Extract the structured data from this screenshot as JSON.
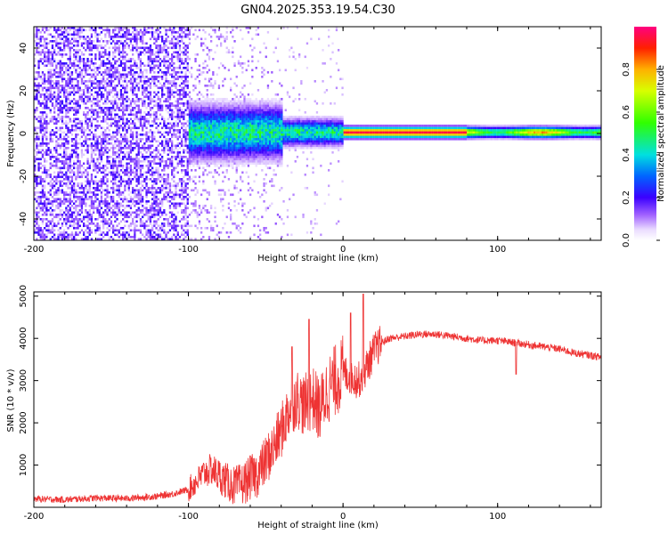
{
  "title": "GN04.2025.353.19.54.C30",
  "colorbar": {
    "label": "Normalized spectral amplitude",
    "range": [
      0,
      1
    ],
    "ticks": [
      "0.0",
      "0.2",
      "0.4",
      "0.6",
      "0.8"
    ],
    "tick_values": [
      0.0,
      0.2,
      0.4,
      0.6,
      0.8
    ],
    "stops": [
      {
        "v": 0.0,
        "color": "#ffffff"
      },
      {
        "v": 0.05,
        "color": "#eadcff"
      },
      {
        "v": 0.12,
        "color": "#a060ff"
      },
      {
        "v": 0.2,
        "color": "#3b00ff"
      },
      {
        "v": 0.3,
        "color": "#0064ff"
      },
      {
        "v": 0.4,
        "color": "#00e0e0"
      },
      {
        "v": 0.55,
        "color": "#30ff00"
      },
      {
        "v": 0.7,
        "color": "#d8ff00"
      },
      {
        "v": 0.8,
        "color": "#ffb000"
      },
      {
        "v": 0.9,
        "color": "#ff2000"
      },
      {
        "v": 1.0,
        "color": "#ff0080"
      }
    ]
  },
  "chart_data": [
    {
      "type": "heatmap",
      "title": "GN04.2025.353.19.54.C30",
      "xlabel": "Height of straight line (km)",
      "ylabel": "Frequency (Hz)",
      "xlim": [
        -200,
        167
      ],
      "ylim": [
        -50,
        50
      ],
      "x_ticks": [
        -200,
        -100,
        0,
        100
      ],
      "x_tick_labels": [
        "-200",
        "-100",
        "0",
        "100"
      ],
      "y_ticks": [
        -40,
        -20,
        0,
        20,
        40
      ],
      "y_tick_labels": [
        "-40",
        "-20",
        "0",
        "20",
        "40"
      ],
      "regions": [
        {
          "x_range": [
            -200,
            -100
          ],
          "description": "broadband noise",
          "amplitude": 0.15
        },
        {
          "x_range": [
            -100,
            0
          ],
          "description": "signal emerging near 0 Hz",
          "peak_amplitude": 0.5
        },
        {
          "x_range": [
            0,
            167
          ],
          "description": "strong narrow line at 0 Hz",
          "peak_amplitude": 0.95
        }
      ],
      "colorbar_label": "Normalized spectral amplitude"
    },
    {
      "type": "line",
      "xlabel": "Height of straight line (km)",
      "ylabel": "SNR (10 * v/v)",
      "xlim": [
        -200,
        167
      ],
      "ylim": [
        0,
        5100
      ],
      "x_ticks": [
        -200,
        -100,
        0,
        100
      ],
      "x_tick_labels": [
        "-200",
        "-100",
        "0",
        "100"
      ],
      "y_ticks": [
        1000,
        2000,
        3000,
        4000,
        5000
      ],
      "y_tick_labels": [
        "1000",
        "2000",
        "3000",
        "4000",
        "5000"
      ],
      "series": [
        {
          "name": "SNR",
          "color": "#ee3333",
          "x": [
            -200,
            -180,
            -160,
            -140,
            -120,
            -110,
            -100,
            -95,
            -90,
            -85,
            -80,
            -75,
            -70,
            -65,
            -60,
            -55,
            -50,
            -45,
            -40,
            -35,
            -30,
            -25,
            -20,
            -15,
            -10,
            -5,
            0,
            5,
            10,
            15,
            20,
            25,
            30,
            40,
            50,
            60,
            70,
            80,
            90,
            100,
            110,
            120,
            130,
            140,
            150,
            160,
            167
          ],
          "values": [
            200,
            180,
            220,
            210,
            260,
            320,
            420,
            600,
            800,
            900,
            750,
            600,
            500,
            550,
            700,
            800,
            1100,
            1400,
            1800,
            2300,
            2600,
            2400,
            2600,
            2300,
            2800,
            3000,
            3200,
            3100,
            3000,
            3300,
            3700,
            3900,
            4000,
            4050,
            4100,
            4100,
            4050,
            4000,
            3950,
            3950,
            3900,
            3850,
            3800,
            3750,
            3650,
            3600,
            3550
          ],
          "spikes": [
            {
              "x": 13,
              "value": 5050
            },
            {
              "x": -22,
              "value": 4450
            },
            {
              "x": -33,
              "value": 3800
            },
            {
              "x": 5,
              "value": 4600
            },
            {
              "x": 112,
              "value": 3150
            }
          ]
        }
      ]
    }
  ]
}
